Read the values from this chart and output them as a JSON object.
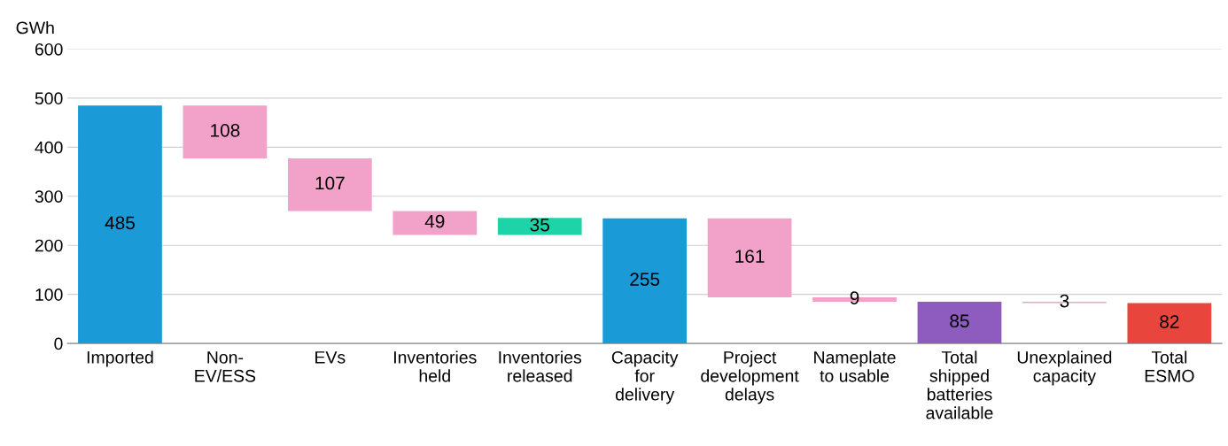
{
  "chart_data": {
    "type": "bar",
    "ylabel": "GWh",
    "categories": [
      "Imported",
      "Non-\nEV/ESS",
      "EVs",
      "Inventories\nheld",
      "Inventories\nreleased",
      "Capacity\nfor\ndelivery",
      "Project\ndevelopment\ndelays",
      "Nameplate\nto usable",
      "Total\nshipped\nbatteries\navailable",
      "Unexplained\ncapacity",
      "Total\nESMO"
    ],
    "values": [
      485,
      108,
      107,
      49,
      35,
      255,
      161,
      9,
      85,
      3,
      82
    ],
    "base": [
      0,
      377,
      270,
      221,
      221,
      0,
      94,
      85,
      0,
      82,
      0
    ],
    "colors": [
      "#1a9ad6",
      "#f2a1c9",
      "#f2a1c9",
      "#f2a1c9",
      "#1ed3a7",
      "#1a9ad6",
      "#f2a1c9",
      "#f2a1c9",
      "#8e5bbf",
      "#f2a1c9",
      "#e8453c"
    ],
    "ylim": [
      0,
      600
    ],
    "yticks": [
      0,
      100,
      200,
      300,
      400,
      500,
      600
    ],
    "grid": "y",
    "data_labels": true
  }
}
